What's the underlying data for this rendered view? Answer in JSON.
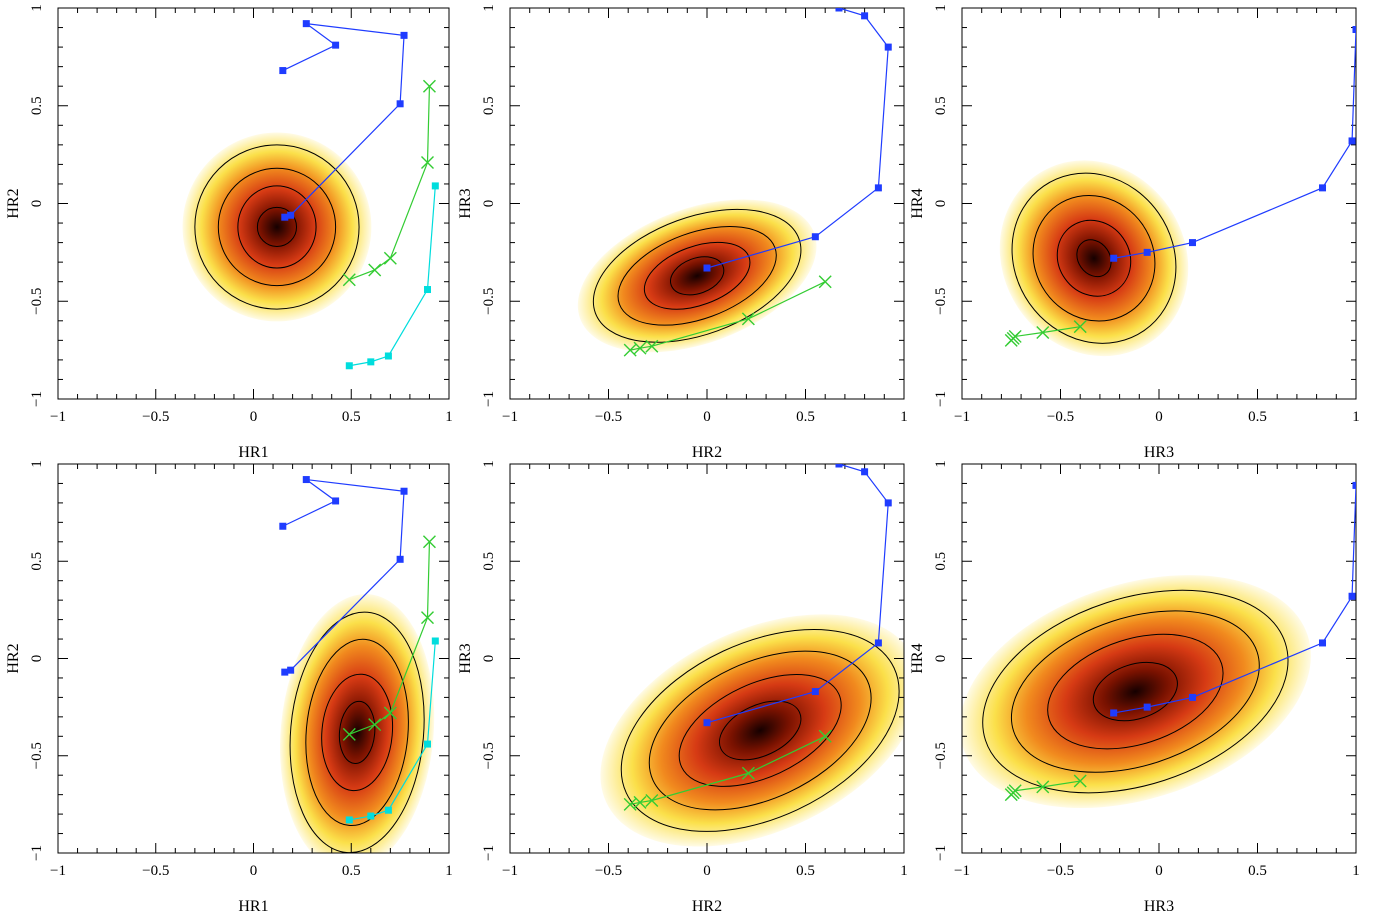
{
  "chart_data": [
    {
      "type": "scatter",
      "panel": "top-left",
      "xlabel": "HR1",
      "ylabel": "HR2",
      "xlim": [
        -1,
        1
      ],
      "ylim": [
        -1,
        1
      ],
      "xticks": [
        "-1",
        "-0.5",
        "0",
        "0.5",
        "1"
      ],
      "yticks": [
        "-1",
        "-0.5",
        "0",
        "0.5",
        "1"
      ],
      "density_peak": {
        "x": 0.12,
        "y": -0.12
      },
      "series": [
        {
          "color": "#1f3cff",
          "marker": "square",
          "x": [
            0.15,
            0.42,
            0.27,
            0.77,
            0.75,
            0.19,
            0.16
          ],
          "y": [
            0.68,
            0.81,
            0.92,
            0.86,
            0.51,
            -0.06,
            -0.07
          ]
        },
        {
          "color": "#33cc33",
          "marker": "cross",
          "x": [
            0.9,
            0.89,
            0.7,
            0.62,
            0.49
          ],
          "y": [
            0.6,
            0.21,
            -0.28,
            -0.34,
            -0.39
          ]
        },
        {
          "color": "#00dddd",
          "marker": "square",
          "x": [
            0.93,
            0.89,
            0.69,
            0.6,
            0.49
          ],
          "y": [
            0.09,
            -0.44,
            -0.78,
            -0.81,
            -0.83
          ]
        }
      ]
    },
    {
      "type": "scatter",
      "panel": "top-middle",
      "xlabel": "HR2",
      "ylabel": "HR3",
      "xlim": [
        -1,
        1
      ],
      "ylim": [
        -1,
        1
      ],
      "xticks": [
        "-1",
        "-0.5",
        "0",
        "0.5",
        "1"
      ],
      "yticks": [
        "-1",
        "-0.5",
        "0",
        "0.5",
        "1"
      ],
      "density_peak": {
        "x": -0.05,
        "y": -0.37
      },
      "series": [
        {
          "color": "#1f3cff",
          "marker": "square",
          "x": [
            0.67,
            0.8,
            0.92,
            0.87,
            0.55,
            0.0
          ],
          "y": [
            1.0,
            0.96,
            0.8,
            0.08,
            -0.17,
            -0.33
          ]
        },
        {
          "color": "#33cc33",
          "marker": "cross",
          "x": [
            0.6,
            0.21,
            -0.28,
            -0.34,
            -0.39
          ],
          "y": [
            -0.4,
            -0.59,
            -0.73,
            -0.74,
            -0.75
          ]
        }
      ]
    },
    {
      "type": "scatter",
      "panel": "top-right",
      "xlabel": "HR3",
      "ylabel": "HR4",
      "xlim": [
        -1,
        1
      ],
      "ylim": [
        -1,
        1
      ],
      "xticks": [
        "-1",
        "-0.5",
        "0",
        "0.5",
        "1"
      ],
      "yticks": [
        "-1",
        "-0.5",
        "0",
        "0.5",
        "1"
      ],
      "density_peak": {
        "x": -0.33,
        "y": -0.28
      },
      "series": [
        {
          "color": "#1f3cff",
          "marker": "square",
          "x": [
            1.0,
            0.98,
            0.83,
            0.17,
            -0.06,
            -0.23
          ],
          "y": [
            0.89,
            0.32,
            0.08,
            -0.2,
            -0.25,
            -0.28
          ]
        },
        {
          "color": "#33cc33",
          "marker": "cross",
          "x": [
            -0.4,
            -0.59,
            -0.73,
            -0.74,
            -0.75
          ],
          "y": [
            -0.63,
            -0.66,
            -0.68,
            -0.69,
            -0.7
          ]
        }
      ]
    },
    {
      "type": "scatter",
      "panel": "bottom-left",
      "xlabel": "HR1",
      "ylabel": "HR2",
      "xlim": [
        -1,
        1
      ],
      "ylim": [
        -1,
        1
      ],
      "xticks": [
        "-1",
        "-0.5",
        "0",
        "0.5",
        "1"
      ],
      "yticks": [
        "-1",
        "-0.5",
        "0",
        "0.5",
        "1"
      ],
      "density_peak": {
        "x": 0.53,
        "y": -0.38
      },
      "series": [
        {
          "color": "#1f3cff",
          "marker": "square",
          "x": [
            0.15,
            0.42,
            0.27,
            0.77,
            0.75,
            0.19,
            0.16
          ],
          "y": [
            0.68,
            0.81,
            0.92,
            0.86,
            0.51,
            -0.06,
            -0.07
          ]
        },
        {
          "color": "#33cc33",
          "marker": "cross",
          "x": [
            0.9,
            0.89,
            0.7,
            0.62,
            0.49
          ],
          "y": [
            0.6,
            0.21,
            -0.28,
            -0.34,
            -0.39
          ]
        },
        {
          "color": "#00dddd",
          "marker": "square",
          "x": [
            0.93,
            0.89,
            0.69,
            0.6,
            0.49
          ],
          "y": [
            0.09,
            -0.44,
            -0.78,
            -0.81,
            -0.83
          ]
        }
      ]
    },
    {
      "type": "scatter",
      "panel": "bottom-middle",
      "xlabel": "HR2",
      "ylabel": "HR3",
      "xlim": [
        -1,
        1
      ],
      "ylim": [
        -1,
        1
      ],
      "xticks": [
        "-1",
        "-0.5",
        "0",
        "0.5",
        "1"
      ],
      "yticks": [
        "-1",
        "-0.5",
        "0",
        "0.5",
        "1"
      ],
      "density_peak": {
        "x": 0.27,
        "y": -0.37
      },
      "series": [
        {
          "color": "#1f3cff",
          "marker": "square",
          "x": [
            0.67,
            0.8,
            0.92,
            0.87,
            0.55,
            0.0
          ],
          "y": [
            1.0,
            0.96,
            0.8,
            0.08,
            -0.17,
            -0.33
          ]
        },
        {
          "color": "#33cc33",
          "marker": "cross",
          "x": [
            0.6,
            0.21,
            -0.28,
            -0.34,
            -0.39
          ],
          "y": [
            -0.4,
            -0.59,
            -0.73,
            -0.74,
            -0.75
          ]
        }
      ]
    },
    {
      "type": "scatter",
      "panel": "bottom-right",
      "xlabel": "HR3",
      "ylabel": "HR4",
      "xlim": [
        -1,
        1
      ],
      "ylim": [
        -1,
        1
      ],
      "xticks": [
        "-1",
        "-0.5",
        "0",
        "0.5",
        "1"
      ],
      "yticks": [
        "-1",
        "-0.5",
        "0",
        "0.5",
        "1"
      ],
      "density_peak": {
        "x": -0.12,
        "y": -0.17
      },
      "series": [
        {
          "color": "#1f3cff",
          "marker": "square",
          "x": [
            1.0,
            0.98,
            0.83,
            0.17,
            -0.06,
            -0.23
          ],
          "y": [
            0.89,
            0.32,
            0.08,
            -0.2,
            -0.25,
            -0.28
          ]
        },
        {
          "color": "#33cc33",
          "marker": "cross",
          "x": [
            -0.4,
            -0.59,
            -0.73,
            -0.74,
            -0.75
          ],
          "y": [
            -0.63,
            -0.66,
            -0.68,
            -0.69,
            -0.7
          ]
        }
      ]
    }
  ]
}
